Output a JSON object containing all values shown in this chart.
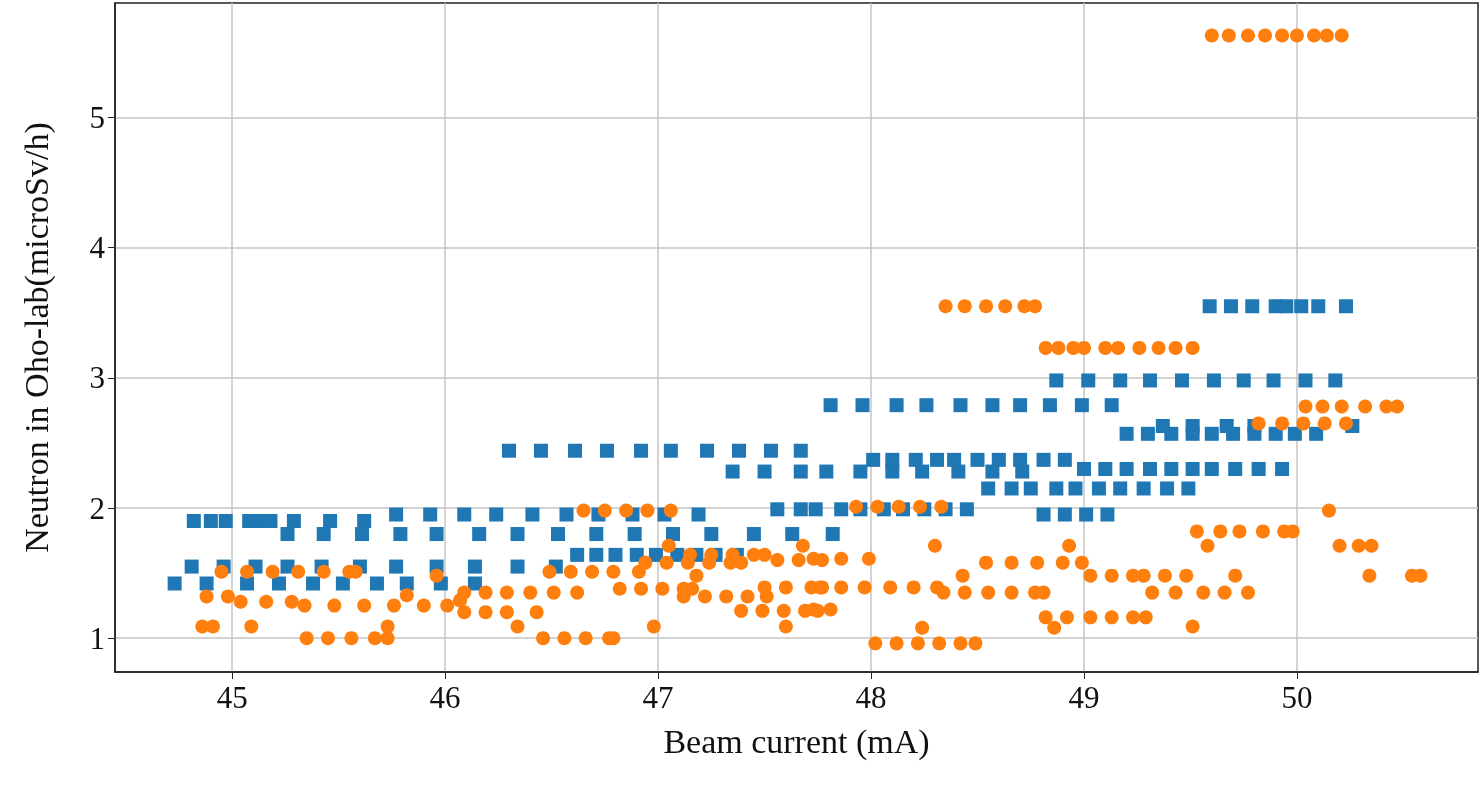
{
  "chart_data": {
    "type": "scatter",
    "xlabel": "Beam current (mA)",
    "ylabel": "Neutron in Oho-lab(microSv/h)",
    "xlim": [
      44.45,
      50.85
    ],
    "ylim": [
      0.74,
      5.88
    ],
    "xticks": [
      45,
      46,
      47,
      48,
      49,
      50
    ],
    "yticks": [
      1,
      2,
      3,
      4,
      5
    ],
    "grid": true,
    "series": [
      {
        "color": "#1f77b4",
        "marker": "square",
        "x": [
          44.82,
          44.9,
          44.97,
          45.08,
          45.14,
          45.18,
          45.29,
          45.46,
          45.62,
          45.77,
          45.93,
          46.09,
          46.24,
          46.41,
          46.57,
          46.72,
          46.88,
          47.03,
          47.19,
          45.26,
          45.43,
          45.61,
          45.79,
          45.96,
          46.16,
          46.34,
          46.53,
          46.71,
          46.89,
          47.07,
          47.25,
          47.45,
          47.63,
          47.82,
          46.62,
          46.71,
          46.8,
          46.9,
          46.99,
          47.09,
          47.18,
          47.27,
          47.37,
          44.81,
          44.96,
          45.11,
          45.26,
          45.42,
          45.6,
          45.77,
          45.96,
          46.14,
          46.34,
          46.52,
          44.73,
          44.88,
          45.07,
          45.22,
          45.38,
          45.52,
          45.68,
          45.82,
          45.98,
          46.14,
          46.3,
          46.45,
          46.61,
          46.76,
          46.92,
          47.06,
          47.23,
          47.38,
          47.53,
          47.67,
          47.35,
          47.5,
          47.67,
          47.79,
          47.95,
          48.1,
          48.24,
          48.41,
          48.57,
          48.71,
          49.0,
          49.1,
          49.2,
          49.31,
          49.41,
          49.51,
          49.6,
          49.71,
          49.82,
          49.93,
          47.56,
          47.67,
          47.74,
          47.86,
          47.95,
          48.06,
          48.15,
          48.25,
          48.35,
          48.45,
          48.81,
          48.91,
          49.01,
          49.11,
          47.81,
          47.96,
          48.12,
          48.26,
          48.42,
          48.57,
          48.7,
          48.84,
          48.99,
          49.13,
          48.01,
          48.1,
          48.21,
          48.31,
          48.39,
          48.5,
          48.6,
          48.7,
          48.81,
          48.91,
          48.55,
          48.66,
          48.75,
          48.87,
          48.96,
          49.07,
          49.17,
          49.28,
          49.39,
          49.49,
          48.87,
          49.02,
          49.17,
          49.31,
          49.46,
          49.61,
          49.75,
          49.89,
          50.04,
          50.18,
          49.2,
          49.3,
          49.41,
          49.51,
          49.6,
          49.7,
          49.8,
          49.9,
          49.99,
          50.09,
          49.37,
          49.51,
          49.67,
          49.8,
          50.26,
          49.59,
          49.69,
          49.79,
          49.9,
          49.95,
          50.02,
          50.1,
          50.23
        ],
        "values": [
          1.9,
          1.9,
          1.9,
          1.9,
          1.9,
          1.9,
          1.9,
          1.9,
          1.9,
          1.95,
          1.95,
          1.95,
          1.95,
          1.95,
          1.95,
          1.95,
          1.95,
          1.95,
          1.95,
          1.8,
          1.8,
          1.8,
          1.8,
          1.8,
          1.8,
          1.8,
          1.8,
          1.8,
          1.8,
          1.8,
          1.8,
          1.8,
          1.8,
          1.8,
          1.64,
          1.64,
          1.64,
          1.64,
          1.64,
          1.64,
          1.64,
          1.64,
          1.64,
          1.55,
          1.55,
          1.55,
          1.55,
          1.55,
          1.55,
          1.55,
          1.55,
          1.55,
          1.55,
          1.55,
          1.42,
          1.42,
          1.42,
          1.42,
          1.42,
          1.42,
          1.42,
          1.42,
          1.42,
          1.42,
          2.44,
          2.44,
          2.44,
          2.44,
          2.44,
          2.44,
          2.44,
          2.44,
          2.44,
          2.44,
          2.28,
          2.28,
          2.28,
          2.28,
          2.28,
          2.28,
          2.28,
          2.28,
          2.28,
          2.28,
          2.3,
          2.3,
          2.3,
          2.3,
          2.3,
          2.3,
          2.3,
          2.3,
          2.3,
          2.3,
          1.99,
          1.99,
          1.99,
          1.99,
          1.99,
          1.99,
          1.99,
          1.99,
          1.99,
          1.99,
          1.95,
          1.95,
          1.95,
          1.95,
          2.79,
          2.79,
          2.79,
          2.79,
          2.79,
          2.79,
          2.79,
          2.79,
          2.79,
          2.79,
          2.37,
          2.37,
          2.37,
          2.37,
          2.37,
          2.37,
          2.37,
          2.37,
          2.37,
          2.37,
          2.15,
          2.15,
          2.15,
          2.15,
          2.15,
          2.15,
          2.15,
          2.15,
          2.15,
          2.15,
          2.98,
          2.98,
          2.98,
          2.98,
          2.98,
          2.98,
          2.98,
          2.98,
          2.98,
          2.98,
          2.57,
          2.57,
          2.57,
          2.57,
          2.57,
          2.57,
          2.57,
          2.57,
          2.57,
          2.57,
          2.63,
          2.63,
          2.63,
          2.63,
          2.63,
          3.55,
          3.55,
          3.55,
          3.55,
          3.55,
          3.55,
          3.55,
          3.55
        ]
      },
      {
        "color": "#ff7f0e",
        "marker": "circle",
        "x": [
          49.6,
          49.68,
          49.77,
          49.85,
          49.93,
          50.0,
          50.08,
          50.14,
          50.21,
          48.35,
          48.44,
          48.54,
          48.63,
          48.72,
          48.77,
          48.82,
          48.88,
          48.95,
          49.0,
          49.1,
          49.16,
          49.26,
          49.35,
          49.43,
          49.51,
          50.04,
          50.12,
          50.21,
          50.32,
          50.42,
          50.47,
          49.82,
          49.93,
          50.03,
          50.13,
          50.23,
          50.15,
          49.53,
          49.64,
          49.73,
          49.84,
          49.94,
          49.98,
          49.58,
          50.2,
          50.29,
          50.35,
          48.3,
          48.93,
          47.05,
          47.68,
          49.28,
          49.38,
          49.48,
          49.71,
          50.34,
          50.54,
          50.58,
          48.43,
          49.03,
          49.13,
          49.23,
          47.18,
          45.96,
          49.32,
          49.43,
          49.56,
          49.66,
          49.77,
          49.51,
          48.86,
          48.24,
          46.34,
          46.98,
          47.6,
          44.86,
          44.91,
          45.09,
          45.73,
          47.93,
          48.03,
          48.13,
          48.23,
          48.33,
          47.73,
          47.86,
          47.99,
          48.54,
          48.66,
          48.78,
          48.9,
          48.99,
          47.76,
          47.86,
          47.97,
          48.09,
          48.2,
          48.31,
          48.34,
          48.44,
          48.55,
          48.66,
          48.77,
          48.81,
          47.73,
          47.81,
          48.82,
          48.92,
          49.03,
          49.13,
          49.23,
          49.29,
          48.02,
          48.12,
          48.22,
          48.32,
          48.42,
          48.49,
          46.65,
          46.75,
          46.85,
          46.95,
          47.06,
          47.15,
          47.25,
          47.35,
          47.45,
          47.5,
          46.94,
          47.04,
          47.14,
          47.24,
          47.34,
          47.39,
          47.56,
          47.66,
          47.77,
          46.49,
          46.59,
          46.69,
          46.79,
          46.91,
          46.82,
          46.92,
          47.02,
          47.12,
          47.16,
          47.5,
          47.6,
          47.72,
          47.77,
          47.12,
          47.22,
          47.32,
          47.42,
          47.51,
          46.09,
          46.19,
          46.29,
          46.4,
          46.51,
          46.62,
          46.09,
          46.19,
          46.29,
          46.43,
          47.39,
          47.49,
          47.59,
          47.69,
          47.75,
          46.46,
          46.56,
          46.66,
          46.77,
          46.79,
          44.95,
          45.07,
          45.19,
          45.31,
          45.43,
          45.55,
          45.58,
          44.88,
          44.98,
          45.04,
          45.16,
          45.28,
          45.34,
          45.48,
          45.62,
          45.76,
          45.9,
          46.01,
          45.82,
          46.07,
          45.35,
          45.45,
          45.56,
          45.67,
          45.73
        ],
        "values": [
          5.63,
          5.63,
          5.63,
          5.63,
          5.63,
          5.63,
          5.63,
          5.63,
          5.63,
          3.55,
          3.55,
          3.55,
          3.55,
          3.55,
          3.55,
          3.23,
          3.23,
          3.23,
          3.23,
          3.23,
          3.23,
          3.23,
          3.23,
          3.23,
          3.23,
          2.78,
          2.78,
          2.78,
          2.78,
          2.78,
          2.78,
          2.65,
          2.65,
          2.65,
          2.65,
          2.65,
          1.98,
          1.82,
          1.82,
          1.82,
          1.82,
          1.82,
          1.82,
          1.71,
          1.71,
          1.71,
          1.71,
          1.71,
          1.71,
          1.71,
          1.71,
          1.48,
          1.48,
          1.48,
          1.48,
          1.48,
          1.48,
          1.48,
          1.48,
          1.48,
          1.48,
          1.48,
          1.48,
          1.48,
          1.35,
          1.35,
          1.35,
          1.35,
          1.35,
          1.09,
          1.08,
          1.08,
          1.09,
          1.09,
          1.09,
          1.09,
          1.09,
          1.09,
          1.09,
          2.01,
          2.01,
          2.01,
          2.01,
          2.01,
          1.61,
          1.61,
          1.61,
          1.58,
          1.58,
          1.58,
          1.58,
          1.58,
          1.39,
          1.39,
          1.39,
          1.39,
          1.39,
          1.39,
          1.35,
          1.35,
          1.35,
          1.35,
          1.35,
          1.35,
          1.22,
          1.22,
          1.16,
          1.16,
          1.16,
          1.16,
          1.16,
          1.16,
          0.96,
          0.96,
          0.96,
          0.96,
          0.96,
          0.96,
          1.98,
          1.98,
          1.98,
          1.98,
          1.98,
          1.64,
          1.64,
          1.64,
          1.64,
          1.64,
          1.58,
          1.58,
          1.58,
          1.58,
          1.58,
          1.58,
          1.6,
          1.6,
          1.6,
          1.51,
          1.51,
          1.51,
          1.51,
          1.51,
          1.38,
          1.38,
          1.38,
          1.38,
          1.38,
          1.39,
          1.39,
          1.39,
          1.39,
          1.32,
          1.32,
          1.32,
          1.32,
          1.32,
          1.35,
          1.35,
          1.35,
          1.35,
          1.35,
          1.35,
          1.2,
          1.2,
          1.2,
          1.2,
          1.21,
          1.21,
          1.21,
          1.21,
          1.21,
          1.0,
          1.0,
          1.0,
          1.0,
          1.0,
          1.51,
          1.51,
          1.51,
          1.51,
          1.51,
          1.51,
          1.51,
          1.32,
          1.32,
          1.28,
          1.28,
          1.28,
          1.25,
          1.25,
          1.25,
          1.25,
          1.25,
          1.25,
          1.33,
          1.29,
          1.0,
          1.0,
          1.0,
          1.0,
          1.0
        ]
      }
    ]
  }
}
